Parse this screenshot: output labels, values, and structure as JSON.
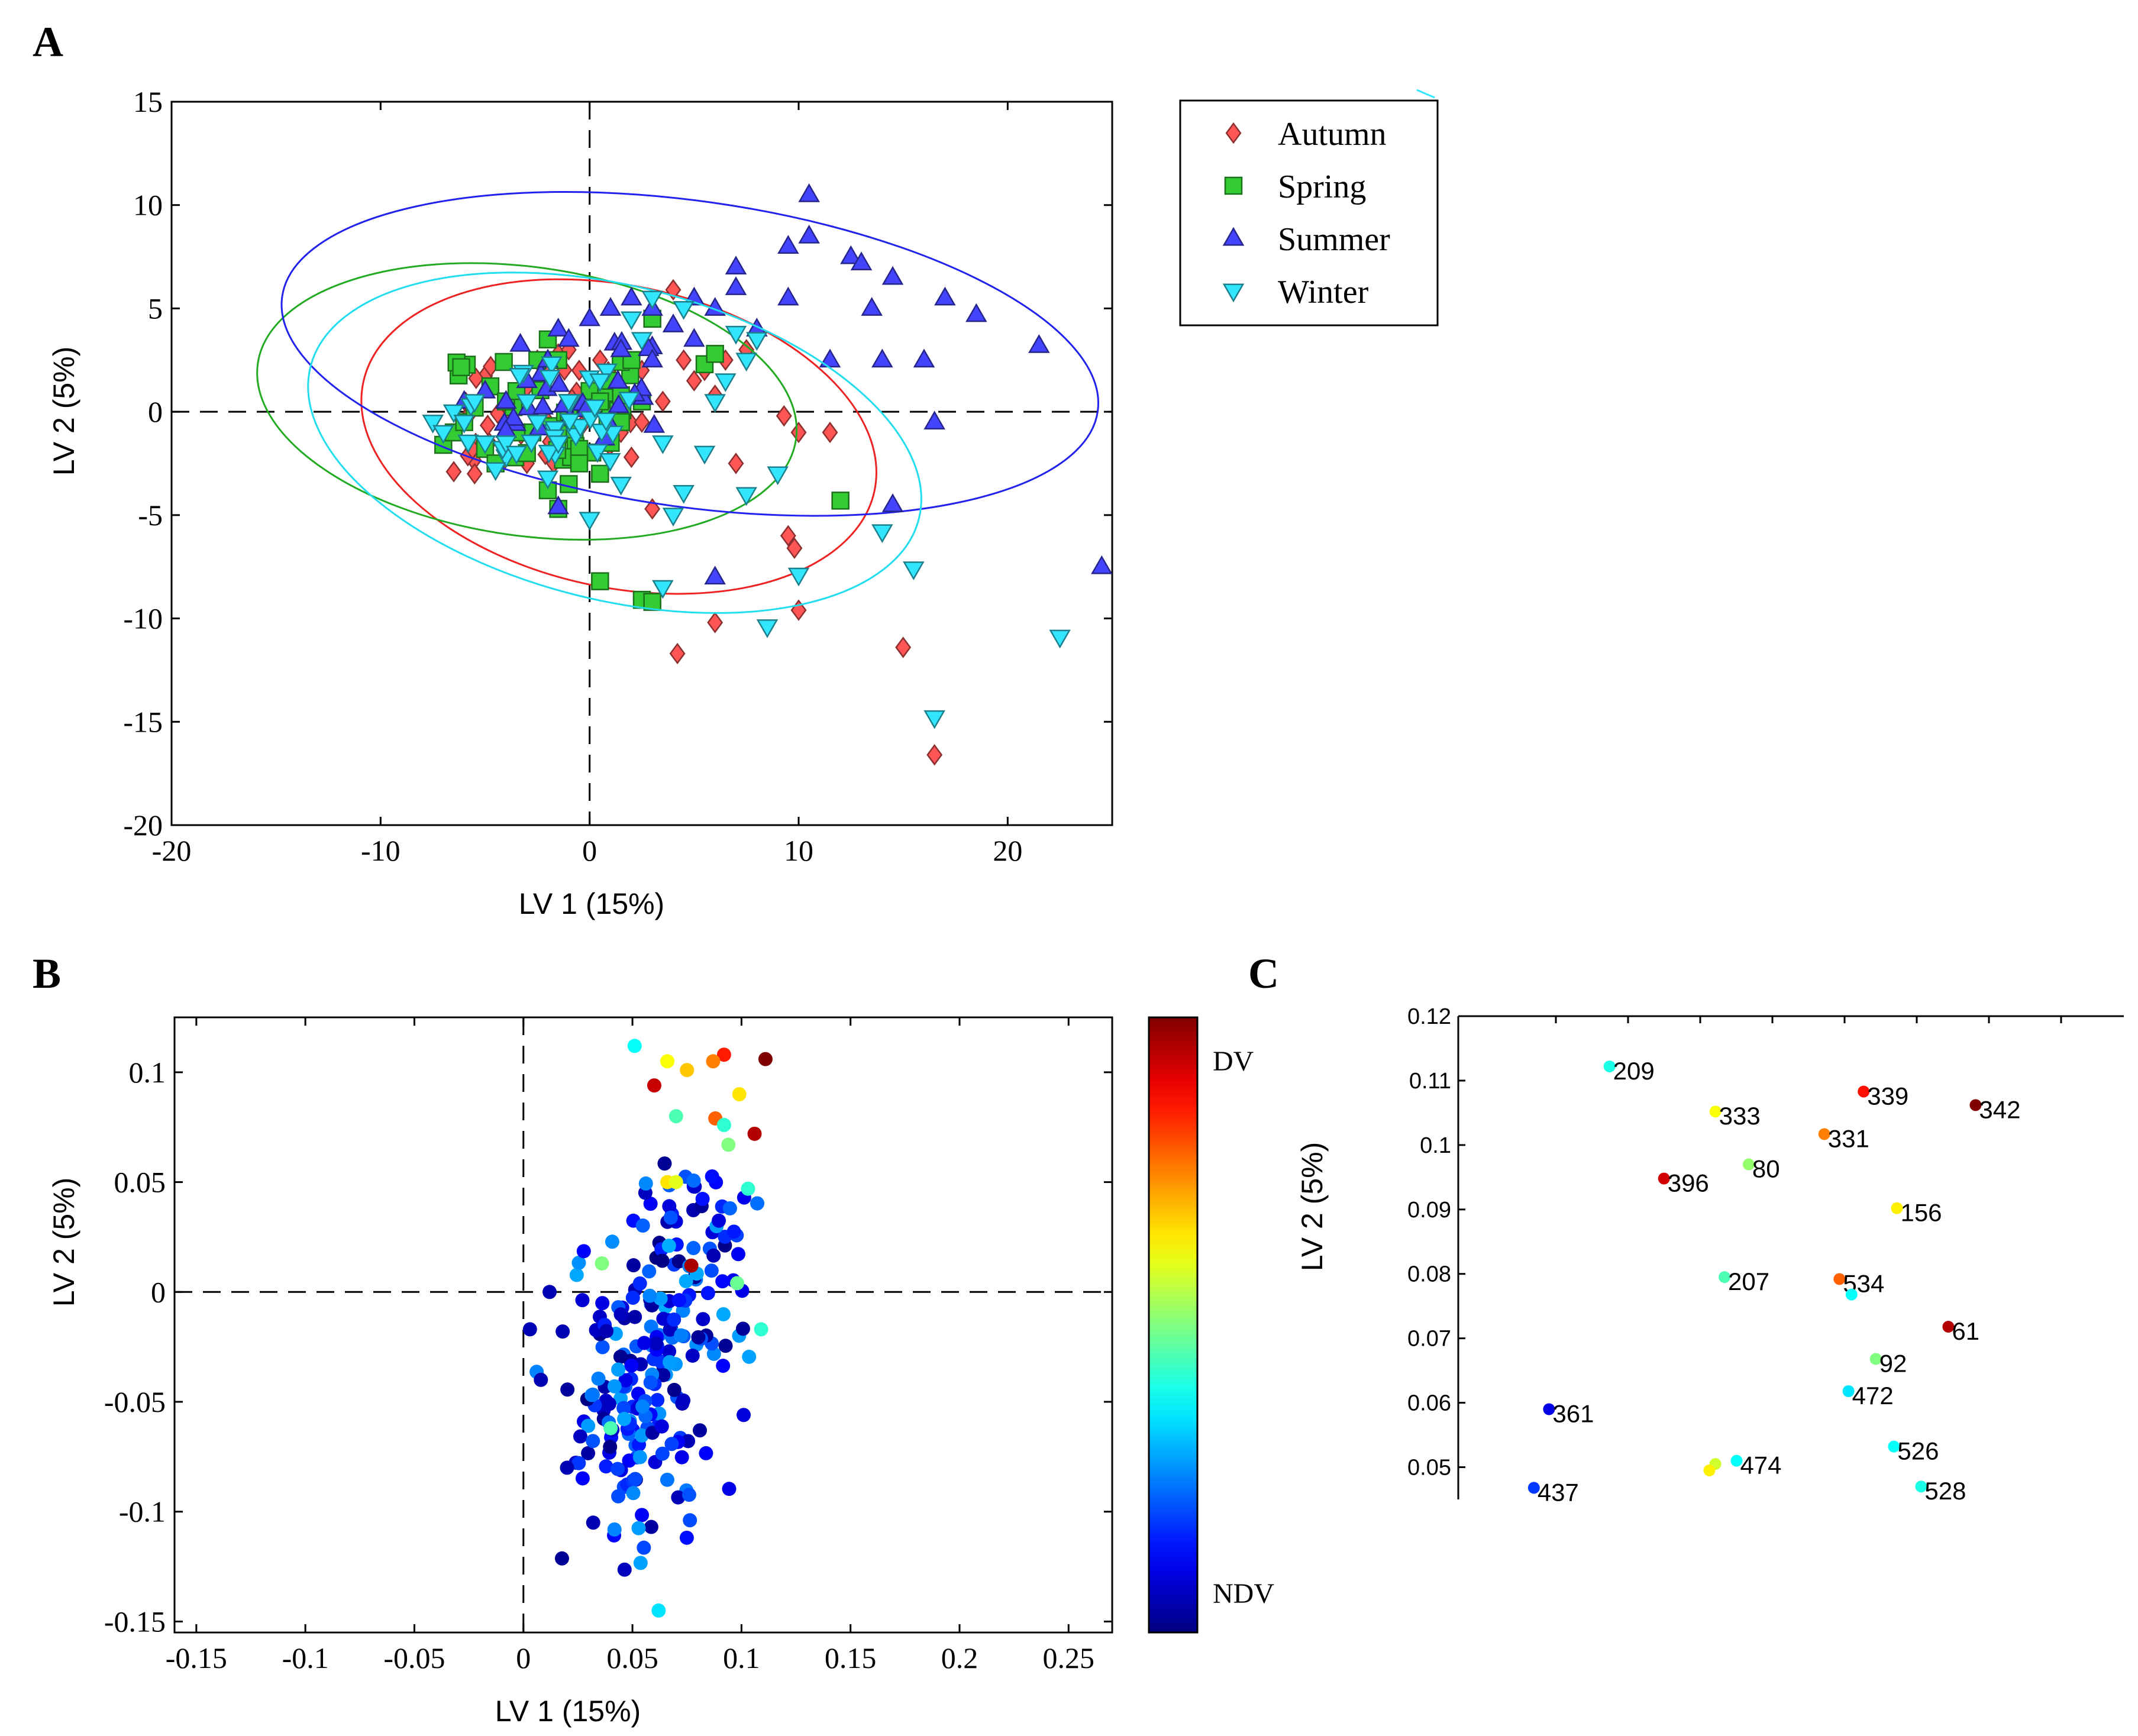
{
  "chart_data": [
    {
      "panel": "A",
      "type": "scatter",
      "xlabel": "LV 1 (15%)",
      "ylabel": "LV 2 (5%)",
      "xlim": [
        -20,
        25
      ],
      "ylim": [
        -20,
        15
      ],
      "xticks": [
        -20,
        -10,
        0,
        10,
        20
      ],
      "yticks": [
        -20,
        -15,
        -10,
        -5,
        0,
        5,
        10,
        15
      ],
      "legend_position": "outside-top-right",
      "series": [
        {
          "name": "Autumn",
          "marker": "diamond",
          "color": "#ff5555",
          "ellipse": {
            "cx": 1.4,
            "cy": -1.2,
            "rx": 12.5,
            "ry": 7.3,
            "angle_deg": -12
          },
          "points": [
            [
              -6.5,
              -2.9
            ],
            [
              -5.5,
              -3.0
            ],
            [
              -4.8,
              -1.5
            ],
            [
              -4.0,
              -0.5
            ],
            [
              -3.0,
              1.2
            ],
            [
              -2.5,
              2.5
            ],
            [
              -2.0,
              1.8
            ],
            [
              -1.5,
              2.8
            ],
            [
              -1.0,
              3.0
            ],
            [
              -0.5,
              2.0
            ],
            [
              0.0,
              1.0
            ],
            [
              0.5,
              2.5
            ],
            [
              1.0,
              1.5
            ],
            [
              1.5,
              -1.0
            ],
            [
              2.0,
              -2.2
            ],
            [
              2.5,
              2.0
            ],
            [
              3.0,
              3.0
            ],
            [
              3.5,
              0.5
            ],
            [
              4.0,
              5.9
            ],
            [
              4.5,
              2.5
            ],
            [
              5.0,
              1.5
            ],
            [
              5.5,
              2.0
            ],
            [
              6.0,
              0.8
            ],
            [
              6.5,
              2.5
            ],
            [
              7.0,
              -2.5
            ],
            [
              7.5,
              3.0
            ],
            [
              3.0,
              -4.7
            ],
            [
              4.2,
              -11.7
            ],
            [
              6.0,
              -10.2
            ],
            [
              9.3,
              -0.2
            ],
            [
              10.0,
              -1.0
            ],
            [
              11.5,
              -1.0
            ],
            [
              9.5,
              -6.0
            ],
            [
              9.8,
              -6.6
            ],
            [
              10.0,
              -9.6
            ],
            [
              15.0,
              -11.4
            ],
            [
              16.5,
              -16.6
            ],
            [
              -3.0,
              -2.5
            ],
            [
              -2.0,
              -0.5
            ],
            [
              1.0,
              0.0
            ],
            [
              2.5,
              -0.5
            ]
          ]
        },
        {
          "name": "Spring",
          "marker": "square",
          "color": "#33cc33",
          "ellipse": {
            "cx": -3.0,
            "cy": 0.5,
            "rx": 13.0,
            "ry": 6.5,
            "angle_deg": -8
          },
          "points": [
            [
              -7.0,
              -1.6
            ],
            [
              -6.5,
              -1.0
            ],
            [
              -6.0,
              -0.5
            ],
            [
              -5.5,
              0.2
            ],
            [
              -5.0,
              -1.8
            ],
            [
              -4.5,
              -2.5
            ],
            [
              -4.0,
              0.5
            ],
            [
              -3.5,
              1.0
            ],
            [
              -3.0,
              -2.0
            ],
            [
              -2.5,
              2.5
            ],
            [
              -2.0,
              3.5
            ],
            [
              -1.5,
              2.5
            ],
            [
              -1.0,
              0.0
            ],
            [
              -0.5,
              -1.8
            ],
            [
              0.0,
              1.0
            ],
            [
              0.5,
              0.5
            ],
            [
              1.0,
              1.5
            ],
            [
              1.5,
              0.8
            ],
            [
              2.0,
              2.5
            ],
            [
              2.5,
              0.5
            ],
            [
              3.0,
              4.5
            ],
            [
              -1.5,
              -4.7
            ],
            [
              -1.0,
              -3.5
            ],
            [
              0.5,
              -3.0
            ],
            [
              0.5,
              -8.2
            ],
            [
              2.5,
              -9.1
            ],
            [
              3.0,
              -9.2
            ],
            [
              5.5,
              2.3
            ],
            [
              6.0,
              2.8
            ],
            [
              12.0,
              -4.3
            ],
            [
              -0.5,
              -2.5
            ],
            [
              -2.0,
              -3.8
            ],
            [
              -3.5,
              -1.0
            ],
            [
              1.5,
              -0.5
            ]
          ]
        },
        {
          "name": "Summer",
          "marker": "triangle-up",
          "color": "#4444ff",
          "ellipse": {
            "cx": 4.8,
            "cy": 2.8,
            "rx": 19.7,
            "ry": 7.4,
            "angle_deg": -8
          },
          "points": [
            [
              -6.0,
              0.5
            ],
            [
              -5.0,
              1.0
            ],
            [
              -4.0,
              0.5
            ],
            [
              -3.0,
              1.5
            ],
            [
              -2.0,
              2.5
            ],
            [
              -1.5,
              4.0
            ],
            [
              -1.0,
              3.5
            ],
            [
              0.0,
              4.5
            ],
            [
              1.0,
              5.0
            ],
            [
              2.0,
              5.5
            ],
            [
              3.0,
              5.0
            ],
            [
              4.0,
              4.2
            ],
            [
              5.0,
              5.5
            ],
            [
              6.0,
              5.0
            ],
            [
              7.0,
              6.0
            ],
            [
              7.0,
              7.0
            ],
            [
              8.0,
              4.0
            ],
            [
              9.5,
              5.5
            ],
            [
              9.5,
              8.0
            ],
            [
              10.5,
              8.5
            ],
            [
              10.5,
              10.5
            ],
            [
              12.5,
              7.5
            ],
            [
              13.0,
              7.2
            ],
            [
              13.5,
              5.0
            ],
            [
              14.5,
              6.5
            ],
            [
              17.0,
              5.5
            ],
            [
              18.5,
              4.7
            ],
            [
              21.5,
              3.2
            ],
            [
              14.0,
              2.5
            ],
            [
              16.0,
              2.5
            ],
            [
              11.5,
              2.5
            ],
            [
              16.5,
              -0.5
            ],
            [
              14.5,
              -4.5
            ],
            [
              24.5,
              -7.5
            ],
            [
              6.0,
              -8.0
            ],
            [
              -1.5,
              -4.6
            ],
            [
              3.0,
              2.5
            ],
            [
              5.0,
              3.5
            ],
            [
              1.5,
              3.0
            ]
          ]
        },
        {
          "name": "Winter",
          "marker": "triangle-down",
          "color": "#33e6ff",
          "ellipse": {
            "cx": 1.2,
            "cy": -1.5,
            "rx": 15.0,
            "ry": 7.6,
            "angle_deg": -14
          },
          "points": [
            [
              -7.5,
              -0.5
            ],
            [
              -7.0,
              -1.0
            ],
            [
              -6.5,
              0.0
            ],
            [
              -6.0,
              -0.5
            ],
            [
              -5.5,
              0.5
            ],
            [
              -5.0,
              -1.5
            ],
            [
              -4.5,
              -2.8
            ],
            [
              -4.0,
              -1.5
            ],
            [
              -3.5,
              -2.0
            ],
            [
              -3.0,
              0.5
            ],
            [
              -2.5,
              -0.5
            ],
            [
              -2.0,
              -3.2
            ],
            [
              -1.5,
              -1.5
            ],
            [
              -1.0,
              0.5
            ],
            [
              0.0,
              -5.2
            ],
            [
              1.5,
              -3.5
            ],
            [
              2.0,
              4.5
            ],
            [
              2.5,
              3.5
            ],
            [
              3.0,
              5.5
            ],
            [
              3.5,
              -1.5
            ],
            [
              4.0,
              -5.0
            ],
            [
              4.5,
              -3.9
            ],
            [
              5.5,
              -2.0
            ],
            [
              6.0,
              0.5
            ],
            [
              6.5,
              1.5
            ],
            [
              7.0,
              3.8
            ],
            [
              7.5,
              2.5
            ],
            [
              8.0,
              3.5
            ],
            [
              7.5,
              -4.0
            ],
            [
              9.0,
              -3.0
            ],
            [
              3.5,
              -8.5
            ],
            [
              8.5,
              -10.4
            ],
            [
              10.0,
              -7.9
            ],
            [
              14.0,
              -5.8
            ],
            [
              15.5,
              -7.6
            ],
            [
              16.5,
              -14.8
            ],
            [
              22.5,
              -10.9
            ],
            [
              4.5,
              5.0
            ],
            [
              0.5,
              1.5
            ]
          ]
        }
      ]
    },
    {
      "panel": "B",
      "type": "scatter",
      "xlabel": "LV 1 (15%)",
      "ylabel": "LV 2 (5%)",
      "xlim": [
        -0.16,
        0.27
      ],
      "ylim": [
        -0.155,
        0.125
      ],
      "xticks": [
        -0.15,
        -0.1,
        -0.05,
        0,
        0.05,
        0.1,
        0.15,
        0.2,
        0.25
      ],
      "xtick_labels": [
        "-0.15",
        "-0.1",
        "-0.05",
        "0",
        "0.05",
        "0.1",
        "0.15",
        "0.2",
        "0.25"
      ],
      "yticks": [
        -0.15,
        -0.1,
        -0.05,
        0,
        0.05,
        0.1
      ],
      "ytick_labels": [
        "-0.15",
        "-0.1",
        "-0.05",
        "0",
        "0.05",
        "0.1"
      ],
      "colorbar": {
        "top_label": "DV",
        "bottom_label": "NDV",
        "colormap": "jet"
      },
      "points_highlighted": [
        {
          "x": 0.051,
          "y": 0.112,
          "v": 0.38
        },
        {
          "x": 0.066,
          "y": 0.105,
          "v": 0.62
        },
        {
          "x": 0.092,
          "y": 0.108,
          "v": 0.85
        },
        {
          "x": 0.111,
          "y": 0.106,
          "v": 1.0
        },
        {
          "x": 0.087,
          "y": 0.105,
          "v": 0.75
        },
        {
          "x": 0.075,
          "y": 0.101,
          "v": 0.68
        },
        {
          "x": 0.06,
          "y": 0.094,
          "v": 0.93
        },
        {
          "x": 0.099,
          "y": 0.09,
          "v": 0.65
        },
        {
          "x": 0.088,
          "y": 0.079,
          "v": 0.78
        },
        {
          "x": 0.092,
          "y": 0.076,
          "v": 0.42
        },
        {
          "x": 0.106,
          "y": 0.072,
          "v": 0.95
        },
        {
          "x": 0.094,
          "y": 0.067,
          "v": 0.5
        },
        {
          "x": 0.07,
          "y": 0.08,
          "v": 0.45
        },
        {
          "x": 0.103,
          "y": 0.047,
          "v": 0.42
        },
        {
          "x": 0.066,
          "y": 0.05,
          "v": 0.65
        },
        {
          "x": 0.07,
          "y": 0.05,
          "v": 0.6
        },
        {
          "x": 0.077,
          "y": 0.012,
          "v": 0.96
        },
        {
          "x": 0.036,
          "y": 0.013,
          "v": 0.5
        },
        {
          "x": 0.098,
          "y": 0.004,
          "v": 0.48
        },
        {
          "x": 0.109,
          "y": -0.017,
          "v": 0.42
        },
        {
          "x": 0.04,
          "y": -0.062,
          "v": 0.45
        },
        {
          "x": 0.062,
          "y": -0.145,
          "v": 0.35
        }
      ],
      "cloud": {
        "center": [
          0.062,
          -0.03
        ],
        "sd": [
          0.018,
          0.042
        ],
        "count": 240,
        "value_range": [
          0.0,
          0.3
        ]
      }
    },
    {
      "panel": "C",
      "type": "scatter",
      "ylabel": "LV 2 (5%)",
      "ylim": [
        0.045,
        0.12
      ],
      "yticks": [
        0.05,
        0.06,
        0.07,
        0.08,
        0.09,
        0.1,
        0.11,
        0.12
      ],
      "ytick_labels": [
        "0.05",
        "0.06",
        "0.07",
        "0.08",
        "0.09",
        "0.1",
        "0.11",
        "0.12"
      ],
      "xlim": [
        0.0,
        0.22
      ],
      "points": [
        {
          "label": "209",
          "x": 0.05,
          "y": 0.1122,
          "v": 0.4
        },
        {
          "label": "339",
          "x": 0.134,
          "y": 0.1083,
          "v": 0.86
        },
        {
          "label": "342",
          "x": 0.171,
          "y": 0.1062,
          "v": 1.0
        },
        {
          "label": "333",
          "x": 0.085,
          "y": 0.1052,
          "v": 0.62
        },
        {
          "label": "331",
          "x": 0.121,
          "y": 0.1017,
          "v": 0.75
        },
        {
          "label": "80",
          "x": 0.096,
          "y": 0.097,
          "v": 0.52
        },
        {
          "label": "396",
          "x": 0.068,
          "y": 0.0948,
          "v": 0.92
        },
        {
          "label": "156",
          "x": 0.145,
          "y": 0.0902,
          "v": 0.64
        },
        {
          "label": "207",
          "x": 0.088,
          "y": 0.0795,
          "v": 0.45
        },
        {
          "label": "534",
          "x": 0.126,
          "y": 0.0792,
          "v": 0.78
        },
        {
          "label": "",
          "x": 0.13,
          "y": 0.0768,
          "v": 0.38
        },
        {
          "label": "61",
          "x": 0.162,
          "y": 0.0718,
          "v": 0.95
        },
        {
          "label": "92",
          "x": 0.138,
          "y": 0.0668,
          "v": 0.5
        },
        {
          "label": "472",
          "x": 0.129,
          "y": 0.0618,
          "v": 0.35
        },
        {
          "label": "361",
          "x": 0.03,
          "y": 0.059,
          "v": 0.1
        },
        {
          "label": "526",
          "x": 0.144,
          "y": 0.0532,
          "v": 0.38
        },
        {
          "label": "474",
          "x": 0.092,
          "y": 0.051,
          "v": 0.38
        },
        {
          "label": "",
          "x": 0.085,
          "y": 0.0505,
          "v": 0.58
        },
        {
          "label": "",
          "x": 0.083,
          "y": 0.0495,
          "v": 0.64
        },
        {
          "label": "437",
          "x": 0.025,
          "y": 0.0468,
          "v": 0.18
        },
        {
          "label": "528",
          "x": 0.153,
          "y": 0.047,
          "v": 0.4
        }
      ]
    }
  ],
  "panel_letters": {
    "a": "A",
    "b": "B",
    "c": "C"
  }
}
